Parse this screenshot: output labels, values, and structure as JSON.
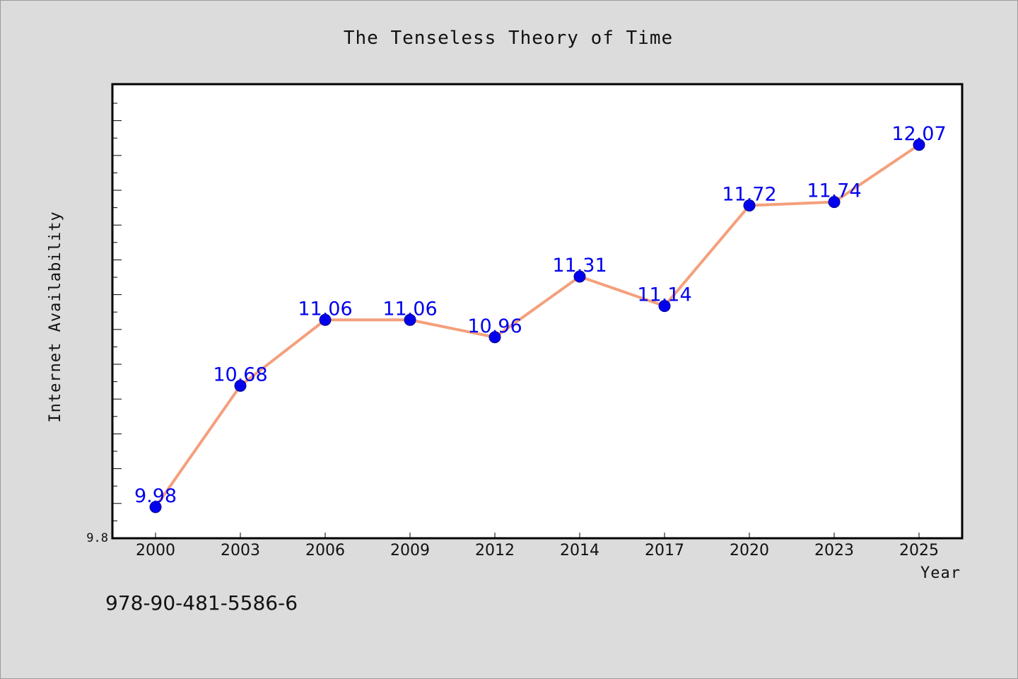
{
  "chart_data": {
    "type": "line",
    "title": "The Tenseless Theory of Time",
    "xlabel": "Year",
    "ylabel": "Internet Availability",
    "categories": [
      "2000",
      "2003",
      "2006",
      "2009",
      "2012",
      "2014",
      "2017",
      "2020",
      "2023",
      "2025"
    ],
    "series": [
      {
        "values": [
          9.98,
          10.68,
          11.06,
          11.06,
          10.96,
          11.31,
          11.14,
          11.72,
          11.74,
          12.07
        ],
        "labels": [
          "9.98",
          "10.68",
          "11.06",
          "11.06",
          "10.96",
          "11.31",
          "11.14",
          "11.72",
          "11.74",
          "12.07"
        ],
        "line_color": "#f4a07c",
        "marker_color": "#0000ee"
      }
    ],
    "ylim": [
      9.8,
      12.42
    ],
    "ytick_labels": [
      "9.8"
    ],
    "grid": false,
    "legend": "none"
  },
  "footnote": "978-90-481-5586-6",
  "colors": {
    "background": "#dcdcdc",
    "plot_background": "#ffffff",
    "line": "#f4a07c",
    "marker": "#0000ee",
    "data_label": "#0000ee"
  }
}
